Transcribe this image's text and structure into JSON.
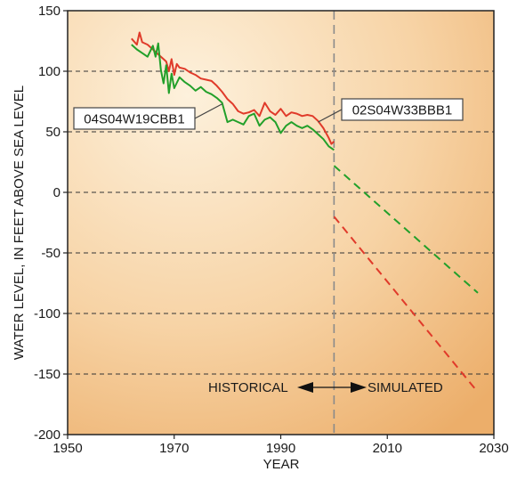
{
  "chart_data": {
    "type": "line",
    "xlabel": "YEAR",
    "ylabel": "WATER LEVEL, IN FEET ABOVE SEA LEVEL",
    "xlim": [
      1950,
      2030
    ],
    "ylim": [
      -200,
      150
    ],
    "x_ticks": [
      1950,
      1970,
      1990,
      2010,
      2030
    ],
    "y_ticks": [
      150,
      100,
      50,
      0,
      -50,
      -100,
      -150,
      -200
    ],
    "grid": "horizontal dashed",
    "divider_year": 2000,
    "divider_labels": {
      "left": "HISTORICAL",
      "right": "SIMULATED"
    },
    "series": [
      {
        "name": "02S04W33BBB1",
        "color": "#e03a2a",
        "historical": {
          "x": [
            1962,
            1963,
            1963.5,
            1964,
            1965,
            1966,
            1967,
            1968,
            1968.5,
            1969,
            1969.5,
            1970,
            1970.5,
            1971,
            1972,
            1973,
            1974,
            1975,
            1976,
            1977,
            1978,
            1979,
            1980,
            1981,
            1982,
            1983,
            1984,
            1985,
            1986,
            1987,
            1988,
            1989,
            1990,
            1991,
            1992,
            1993,
            1994,
            1995,
            1996,
            1997,
            1998,
            1999,
            1999.5,
            2000
          ],
          "y": [
            127,
            122,
            132,
            124,
            122,
            118,
            114,
            110,
            108,
            100,
            110,
            97,
            106,
            103,
            102,
            99,
            97,
            94,
            93,
            92,
            88,
            83,
            77,
            73,
            67,
            65,
            66,
            68,
            63,
            74,
            67,
            64,
            69,
            63,
            66,
            65,
            63,
            64,
            63,
            59,
            53,
            45,
            40,
            42
          ]
        },
        "simulated": {
          "x": [
            2000,
            2027
          ],
          "y": [
            -20,
            -165
          ]
        }
      },
      {
        "name": "04S04W19CBB1",
        "color": "#22a02a",
        "historical": {
          "x": [
            1962,
            1963,
            1964,
            1965,
            1966,
            1966.5,
            1967,
            1967.5,
            1968,
            1968.5,
            1969,
            1969.5,
            1970,
            1971,
            1972,
            1973,
            1974,
            1975,
            1976,
            1977,
            1978,
            1979,
            1980,
            1981,
            1982,
            1983,
            1984,
            1985,
            1986,
            1987,
            1988,
            1989,
            1990,
            1991,
            1992,
            1993,
            1994,
            1995,
            1996,
            1997,
            1998,
            1999,
            2000
          ],
          "y": [
            122,
            118,
            115,
            112,
            121,
            112,
            123,
            101,
            90,
            105,
            82,
            98,
            86,
            95,
            91,
            88,
            84,
            87,
            83,
            81,
            78,
            74,
            58,
            60,
            58,
            56,
            63,
            65,
            55,
            60,
            62,
            58,
            49,
            55,
            58,
            55,
            53,
            55,
            52,
            48,
            44,
            38,
            35
          ]
        },
        "simulated": {
          "x": [
            2000,
            2027
          ],
          "y": [
            22,
            -83
          ]
        }
      }
    ],
    "annotations": [
      {
        "text": "04S04W19CBB1",
        "points_to": {
          "x": 1979,
          "y": 73
        }
      },
      {
        "text": "02S04W33BBB1",
        "points_to": {
          "x": 1997,
          "y": 58
        }
      }
    ]
  }
}
